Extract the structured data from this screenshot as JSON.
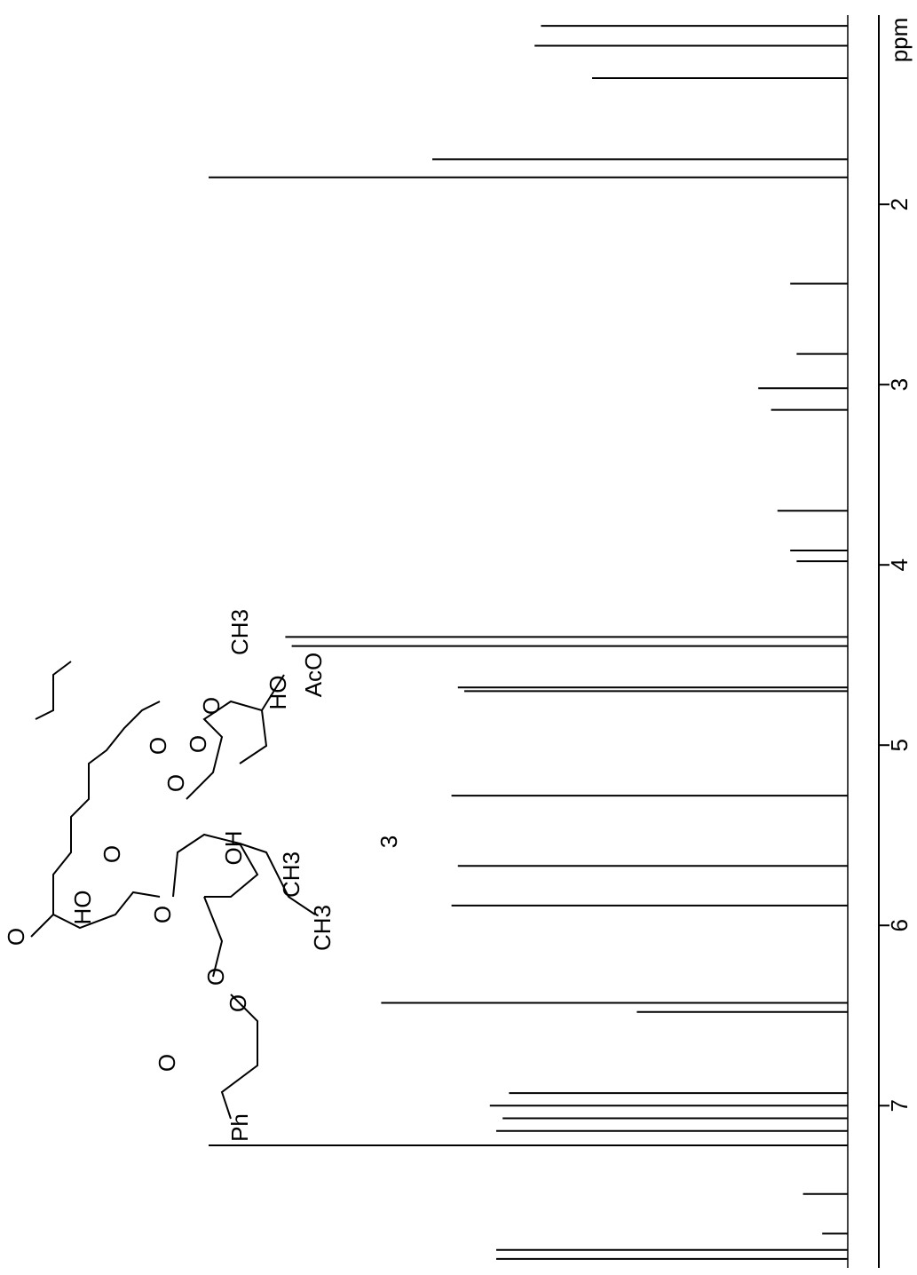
{
  "chart_data": {
    "type": "spectrum",
    "x_label": "ppm",
    "xlim": [
      0.95,
      7.9
    ],
    "xticks": [
      2,
      3,
      4,
      5,
      6,
      7
    ],
    "ylim": [
      0,
      100
    ],
    "color": "#000000",
    "compound_label": "3",
    "peaks": {
      "x": [
        1.01,
        1.12,
        1.3,
        1.75,
        1.85,
        2.44,
        2.83,
        3.02,
        3.14,
        3.7,
        3.92,
        3.98,
        4.4,
        4.45,
        4.68,
        4.7,
        5.28,
        5.67,
        5.89,
        6.43,
        6.48,
        6.93,
        7.0,
        7.07,
        7.14,
        7.22,
        7.49,
        7.71,
        7.8,
        7.85
      ],
      "values": [
        48,
        49,
        40,
        65,
        100,
        9,
        8,
        14,
        12,
        11,
        9,
        8,
        88,
        87,
        61,
        60,
        62,
        61,
        62,
        73,
        33,
        53,
        56,
        54,
        55,
        100,
        7,
        4,
        55,
        55
      ]
    },
    "structure_labels": [
      "O",
      "HO",
      "O",
      "O",
      "O",
      "O",
      "OH",
      "CH3",
      "O",
      "O",
      "CH3",
      "O",
      "Ph",
      "O",
      "CH3",
      "HO",
      "AcO",
      "O"
    ]
  }
}
